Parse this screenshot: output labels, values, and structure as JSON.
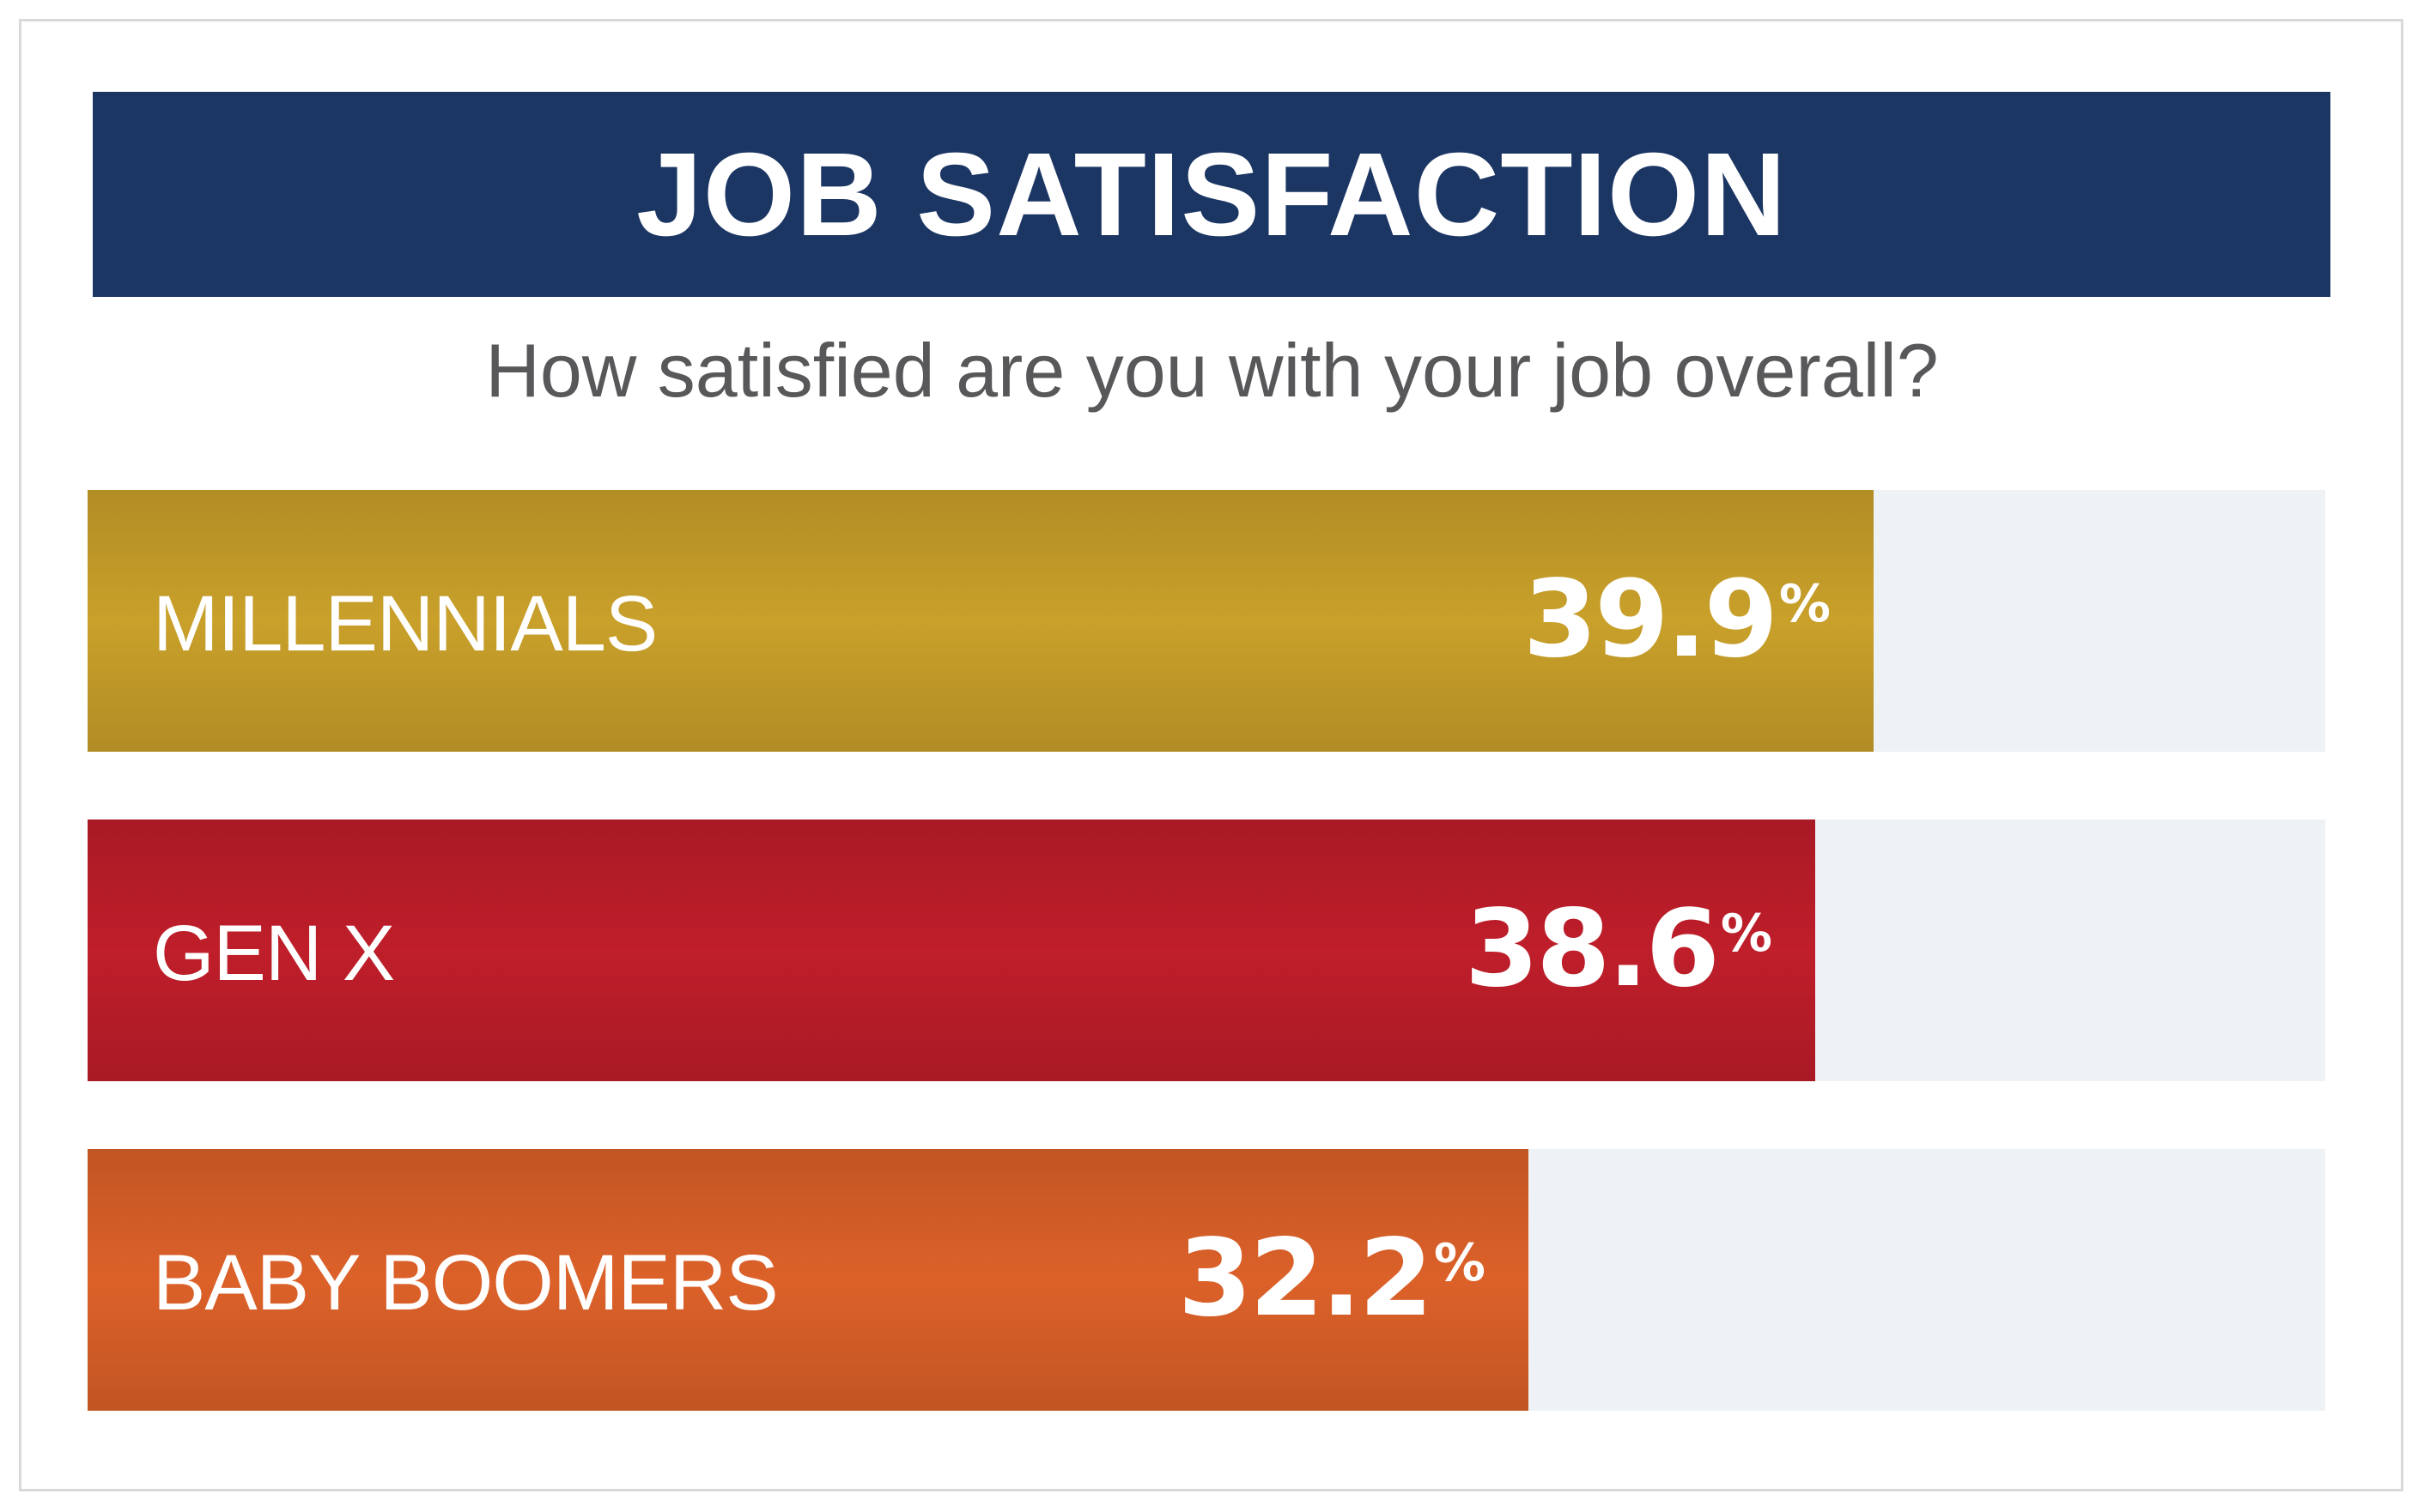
{
  "chart_data": {
    "type": "bar",
    "orientation": "horizontal",
    "title": "JOB SATISFACTION",
    "subtitle": "How satisfied are you with your job overall?",
    "categories": [
      "MILLENNIALS",
      "GEN X",
      "BABY BOOMERS"
    ],
    "values": [
      39.9,
      38.6,
      32.2
    ],
    "value_labels": [
      "39.9",
      "38.6",
      "32.2"
    ],
    "unit": "%",
    "xlim": [
      0,
      50
    ],
    "colors": [
      "#c9a02a",
      "#bf1e2a",
      "#dc6129"
    ],
    "track_color": "#eef2f4",
    "title_background": "#1c3664",
    "grid": false,
    "legend": "none"
  }
}
